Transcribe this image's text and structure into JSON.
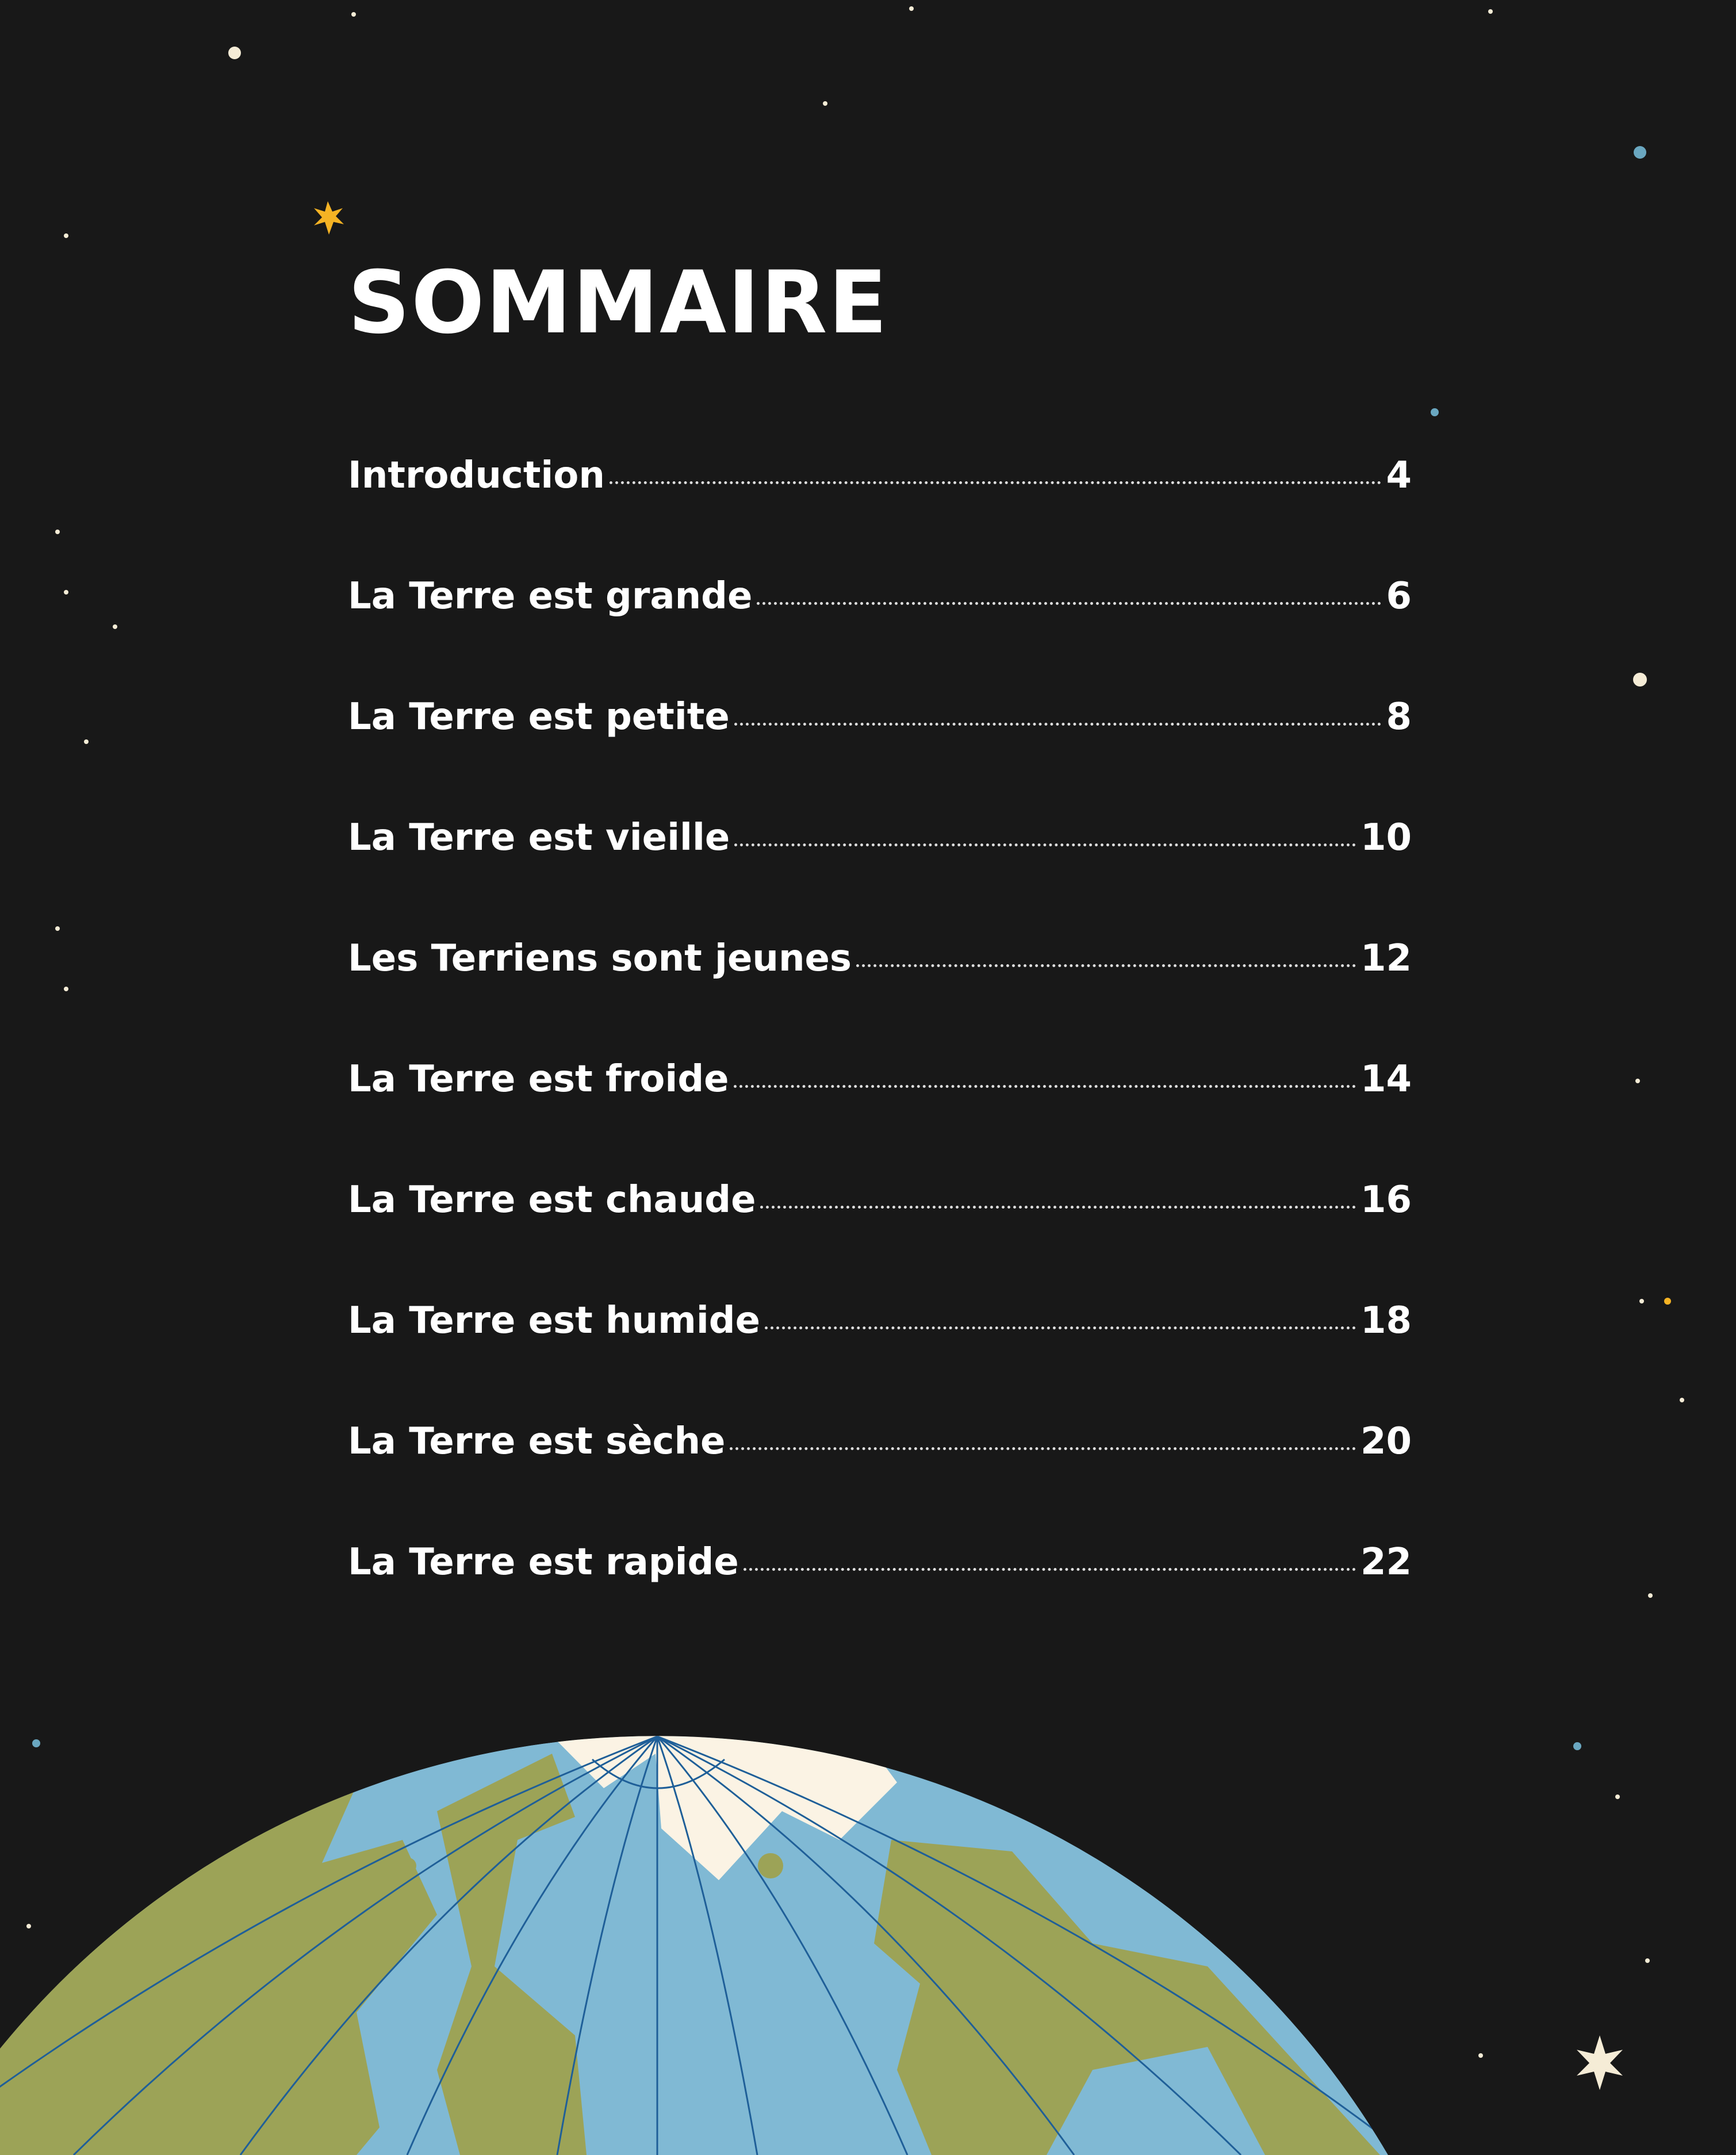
{
  "title": "SOMMAIRE",
  "toc": [
    {
      "label": "Introduction",
      "page": "4"
    },
    {
      "label": "La Terre est grande",
      "page": "6"
    },
    {
      "label": "La Terre est petite",
      "page": "8"
    },
    {
      "label": "La Terre est vieille",
      "page": "10"
    },
    {
      "label": "Les Terriens sont jeunes",
      "page": "12"
    },
    {
      "label": "La Terre est froide",
      "page": "14"
    },
    {
      "label": "La Terre est chaude",
      "page": "16"
    },
    {
      "label": "La Terre est humide",
      "page": "18"
    },
    {
      "label": "La Terre est sèche",
      "page": "20"
    },
    {
      "label": "La Terre est rapide",
      "page": "22"
    }
  ],
  "colors": {
    "background": "#181818",
    "ocean": "#80b9d4",
    "land": "#9ca357",
    "ice": "#fbf3e4",
    "star_yellow": "#f5b324",
    "star_blue": "#6aa7c0",
    "star_cream": "#f5ecd6"
  }
}
